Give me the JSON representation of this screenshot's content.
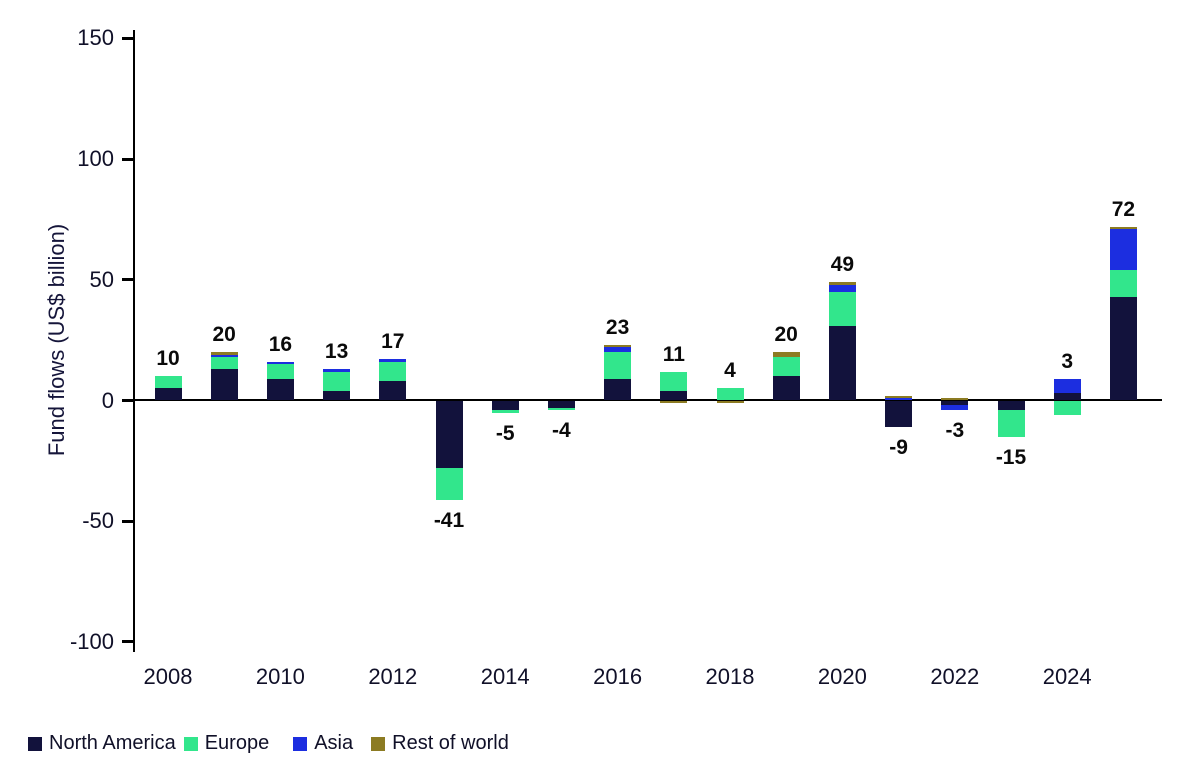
{
  "figure": {
    "ylabel": "Fund flows (US$ billion)"
  },
  "chart_data": {
    "type": "bar",
    "stacked": true,
    "title": "",
    "xlabel": "",
    "ylabel": "Fund flows (US$ billion)",
    "ylim": [
      -100,
      150
    ],
    "y_ticks": [
      150,
      100,
      50,
      0,
      -50,
      -100
    ],
    "grid": false,
    "legend_position": "bottom-left",
    "categories": [
      "2008",
      "2009",
      "2010",
      "2011",
      "2012",
      "2013",
      "2014",
      "2015",
      "2016",
      "2017",
      "2018",
      "2019",
      "2020",
      "2021",
      "2022",
      "2023",
      "2024",
      "2025"
    ],
    "x_tick_labels": [
      "2008",
      "2010",
      "2012",
      "2014",
      "2016",
      "2018",
      "2020",
      "2022",
      "2024"
    ],
    "series": [
      {
        "name": "North America",
        "color": "#12123C",
        "values": [
          5,
          13,
          9,
          4,
          8,
          -28,
          -4,
          -3,
          9,
          4,
          0,
          10,
          31,
          -11,
          -2,
          -4,
          3,
          43
        ]
      },
      {
        "name": "Europe",
        "color": "#32E68C",
        "values": [
          5,
          5,
          6,
          8,
          8,
          -13,
          -1,
          -1,
          11,
          8,
          5,
          8,
          14,
          0,
          0,
          -11,
          -6,
          11
        ]
      },
      {
        "name": "Asia",
        "color": "#1C2EE0",
        "values": [
          0,
          1,
          1,
          1,
          1,
          0,
          0,
          0,
          2,
          0,
          0,
          0,
          3,
          1,
          -2,
          0,
          6,
          17
        ]
      },
      {
        "name": "Rest of world",
        "color": "#8C7B22",
        "values": [
          0,
          1,
          0,
          0,
          0,
          0,
          0,
          0,
          1,
          -1,
          -1,
          2,
          1,
          1,
          1,
          0,
          0,
          1
        ]
      }
    ],
    "totals": [
      10,
      20,
      16,
      13,
      17,
      -41,
      -5,
      -4,
      23,
      11,
      4,
      20,
      49,
      -9,
      -3,
      -15,
      3,
      72
    ]
  }
}
